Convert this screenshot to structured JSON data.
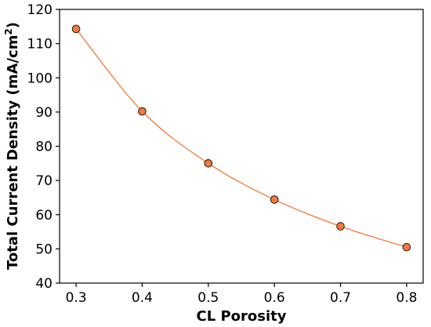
{
  "chart_data": {
    "type": "line",
    "xlabel": "CL Porosity",
    "ylabel_main": "Total Current Density (mA/cm",
    "ylabel_sup": "2",
    "ylabel_end": ")",
    "x": [
      0.3,
      0.4,
      0.5,
      0.6,
      0.7,
      0.8
    ],
    "series": [
      {
        "values": [
          114.3,
          90.2,
          75.0,
          64.4,
          56.6,
          50.5
        ],
        "color": "#f5793a",
        "marker": "circle",
        "marker_fill": "#f5793a",
        "marker_edge": "#1a1a1a"
      }
    ],
    "xlim": [
      0.275,
      0.825
    ],
    "ylim": [
      40,
      120
    ],
    "xticks": [
      "0.3",
      "0.4",
      "0.5",
      "0.6",
      "0.7",
      "0.8"
    ],
    "yticks": [
      "40",
      "50",
      "60",
      "70",
      "80",
      "90",
      "100",
      "110",
      "120"
    ],
    "grid": false,
    "smooth": true
  }
}
